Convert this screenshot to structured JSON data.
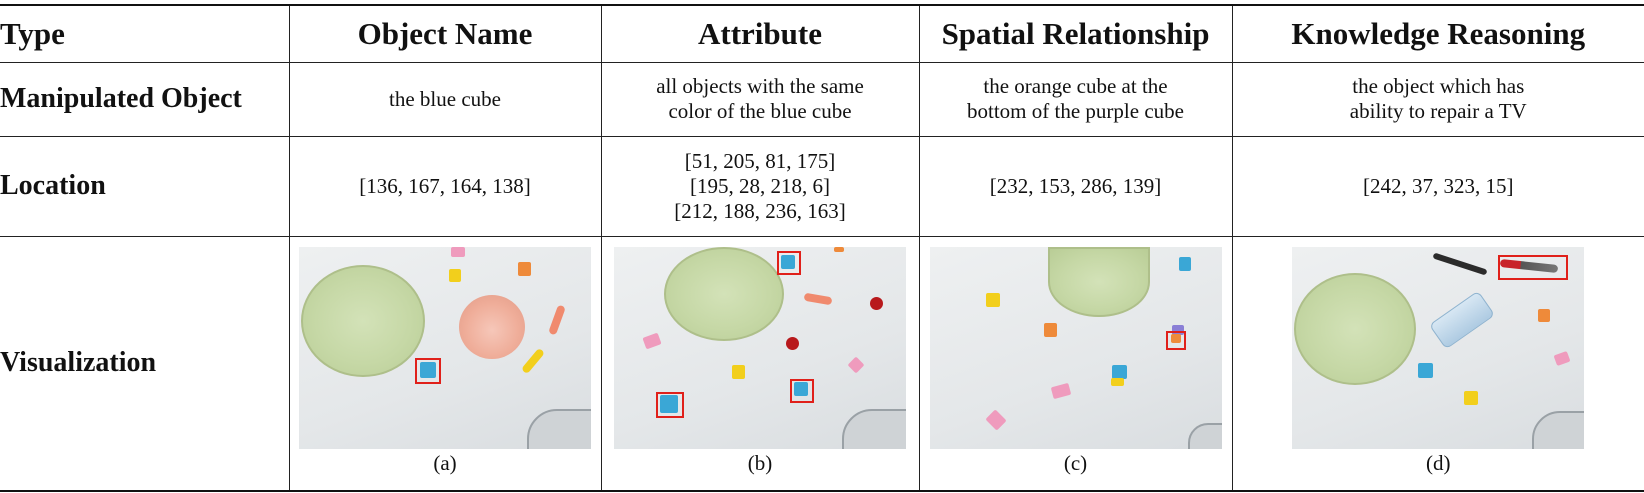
{
  "header": {
    "type": "Type",
    "object_name": "Object Name",
    "attribute": "Attribute",
    "spatial": "Spatial Relationship",
    "knowledge": "Knowledge Reasoning"
  },
  "rows": {
    "manipulated": {
      "label": "Manipulated  Object",
      "object_name": [
        "the blue cube"
      ],
      "attribute": [
        "all objects with the same",
        "color of the blue cube"
      ],
      "spatial": [
        "the orange cube at the",
        "bottom of the purple cube"
      ],
      "knowledge": [
        "the object  which has",
        "ability to repair a TV"
      ]
    },
    "location": {
      "label": "Location",
      "object_name": [
        "[136, 167, 164, 138]"
      ],
      "attribute": [
        "[51, 205, 81, 175]",
        "[195, 28, 218, 6]",
        "[212, 188, 236, 163]"
      ],
      "spatial": [
        "[232, 153, 286, 139]"
      ],
      "knowledge": [
        "[242, 37, 323, 15]"
      ]
    },
    "visualization": {
      "label": "Visualization",
      "captions": [
        "(a)",
        "(b)",
        "(c)",
        "(d)"
      ]
    }
  },
  "colors": {
    "bbox": "#e0201a",
    "blue_cube": "#3aa7d6",
    "yellow_cube": "#f2cf1c",
    "orange_cube": "#ee8a3a",
    "pink_block": "#ef9bbd",
    "purple_cube": "#8a7fd6",
    "plate": "#c6d8a6",
    "bowl": "#efad99"
  }
}
